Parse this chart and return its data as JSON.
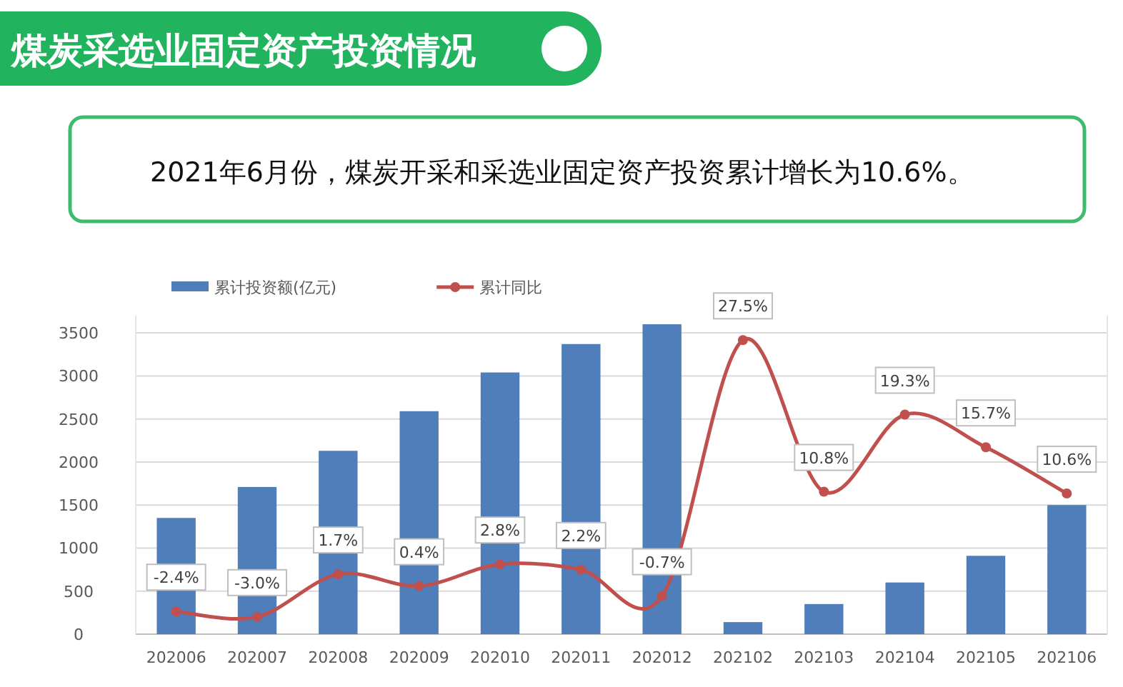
{
  "chart_data": {
    "type": "bar",
    "title": "煤炭采选业固定资产投资情况",
    "subtitle": "2021年6月份，煤炭开采和采选业固定资产投资累计增长为10.6%。",
    "categories": [
      "202006",
      "202007",
      "202008",
      "202009",
      "202010",
      "202011",
      "202012",
      "202102",
      "202103",
      "202104",
      "202105",
      "202106"
    ],
    "series": [
      {
        "name": "累计投资额(亿元)",
        "color": "#4f7ebb",
        "values": [
          1350,
          1710,
          2130,
          2590,
          3040,
          3370,
          3600,
          140,
          350,
          600,
          910,
          1500
        ]
      },
      {
        "name": "累计同比",
        "type": "line",
        "axis": "y2",
        "color": "#c0504d",
        "marker": "circle",
        "values": [
          -2.4,
          -3.0,
          1.7,
          0.4,
          2.8,
          2.2,
          -0.7,
          27.5,
          10.8,
          19.3,
          15.7,
          10.6
        ],
        "value_labels": [
          "-2.4%",
          "-3.0%",
          "1.7%",
          "0.4%",
          "2.8%",
          "2.2%",
          "-0.7%",
          "27.5%",
          "10.8%",
          "19.3%",
          "15.7%",
          "10.6%"
        ]
      }
    ],
    "ylim": [
      0,
      3700
    ],
    "yticks": [
      0,
      500,
      1000,
      1500,
      2000,
      2500,
      3000,
      3500
    ],
    "y2lim": [
      -4.9,
      30.2
    ],
    "grid": "y",
    "legend": "top"
  }
}
